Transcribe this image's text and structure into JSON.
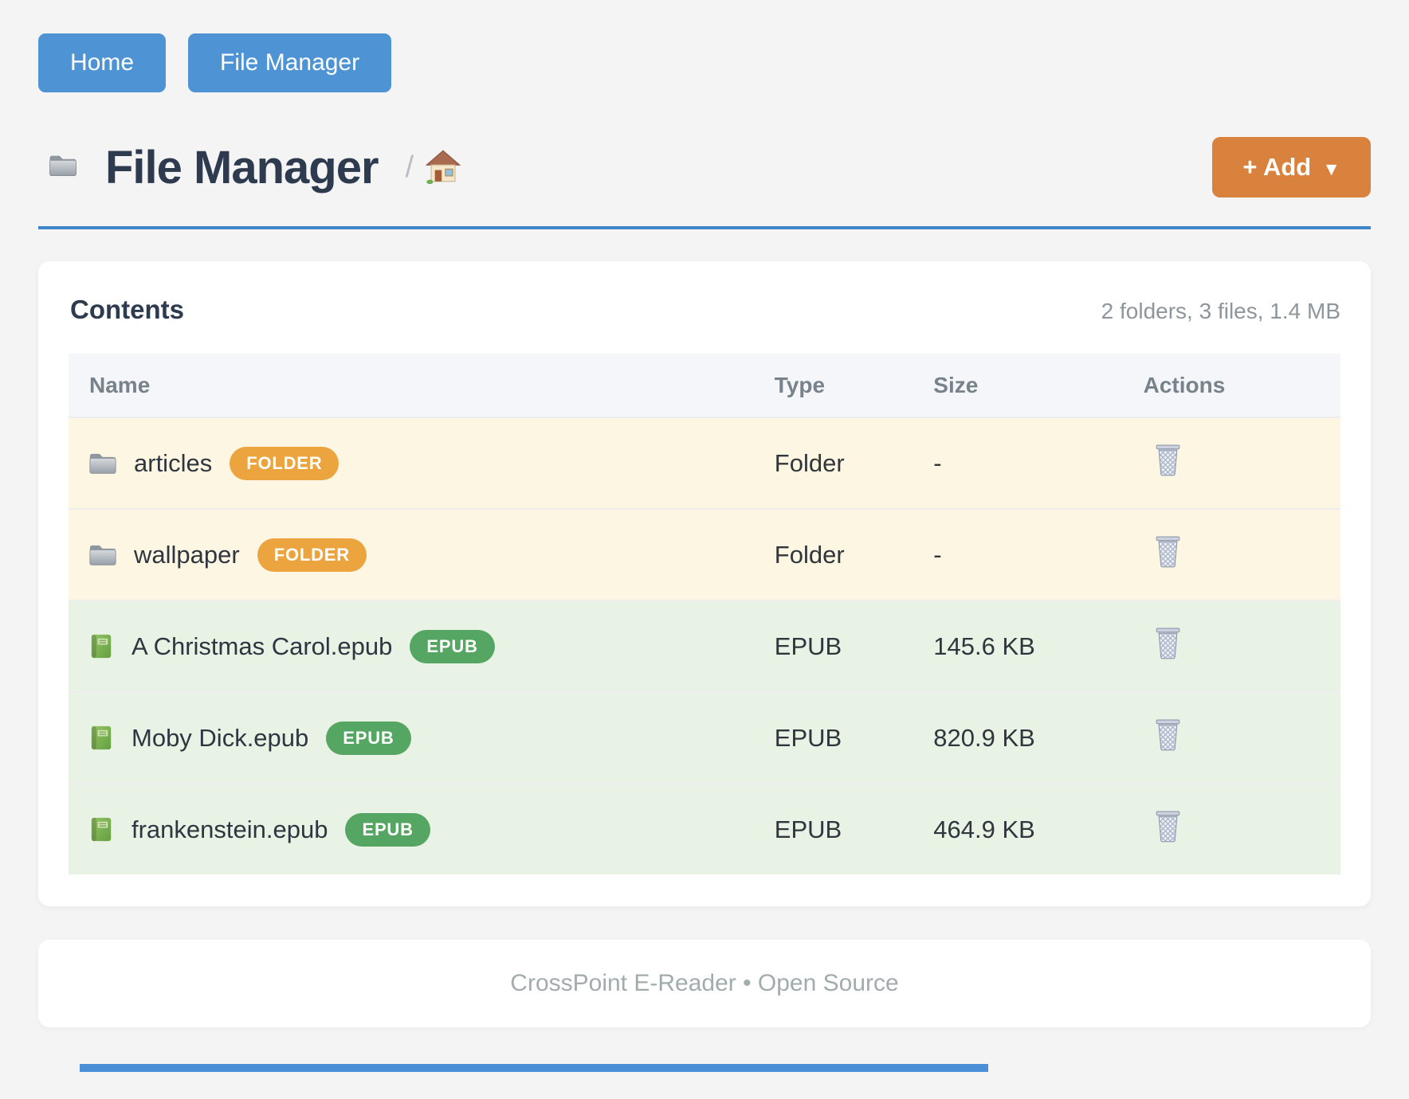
{
  "nav": {
    "buttons": [
      {
        "label": "Home"
      },
      {
        "label": "File Manager"
      }
    ]
  },
  "header": {
    "title": "File Manager",
    "title_icon": "folder-icon",
    "breadcrumb": {
      "separator": "/",
      "home_icon": "home-icon"
    },
    "add_label": "+ Add",
    "add_caret": "▼"
  },
  "contents": {
    "title": "Contents",
    "summary": "2 folders, 3 files, 1.4 MB",
    "columns": [
      "Name",
      "Type",
      "Size",
      "Actions"
    ],
    "action_icon": "trash-icon",
    "rows": [
      {
        "icon": "folder-icon",
        "name": "articles",
        "badge": "FOLDER",
        "kind": "folder",
        "type": "Folder",
        "size": "-"
      },
      {
        "icon": "folder-icon",
        "name": "wallpaper",
        "badge": "FOLDER",
        "kind": "folder",
        "type": "Folder",
        "size": "-"
      },
      {
        "icon": "book-icon",
        "name": "A Christmas Carol.epub",
        "badge": "EPUB",
        "kind": "epub",
        "type": "EPUB",
        "size": "145.6 KB"
      },
      {
        "icon": "book-icon",
        "name": "Moby Dick.epub",
        "badge": "EPUB",
        "kind": "epub",
        "type": "EPUB",
        "size": "820.9 KB"
      },
      {
        "icon": "book-icon",
        "name": "frankenstein.epub",
        "badge": "EPUB",
        "kind": "epub",
        "type": "EPUB",
        "size": "464.9 KB"
      }
    ]
  },
  "footer": {
    "text": "CrossPoint E-Reader • Open Source"
  },
  "colors": {
    "accent_blue": "#4e94d4",
    "rule_blue": "#3e86c8",
    "add_orange": "#d8823e",
    "folder_badge": "#eba43e",
    "epub_badge": "#56a663",
    "folder_row_bg": "#fdf6e2",
    "epub_row_bg": "#e8f2e5"
  }
}
